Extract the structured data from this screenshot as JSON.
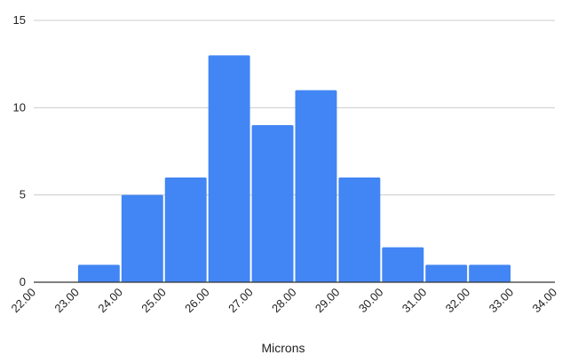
{
  "chart_data": {
    "type": "bar",
    "title": "",
    "xlabel": "Microns",
    "ylabel": "",
    "x_ticks": [
      "22.00",
      "23.00",
      "24.00",
      "25.00",
      "26.00",
      "27.00",
      "28.00",
      "29.00",
      "30.00",
      "31.00",
      "32.00",
      "33.00",
      "34.00"
    ],
    "x_tick_values": [
      22,
      23,
      24,
      25,
      26,
      27,
      28,
      29,
      30,
      31,
      32,
      33,
      34
    ],
    "xlim": [
      22,
      34
    ],
    "bins": [
      {
        "start": 23,
        "end": 24,
        "count": 1
      },
      {
        "start": 24,
        "end": 25,
        "count": 5
      },
      {
        "start": 25,
        "end": 26,
        "count": 6
      },
      {
        "start": 26,
        "end": 27,
        "count": 13
      },
      {
        "start": 27,
        "end": 28,
        "count": 9
      },
      {
        "start": 28,
        "end": 29,
        "count": 11
      },
      {
        "start": 29,
        "end": 30,
        "count": 6
      },
      {
        "start": 30,
        "end": 31,
        "count": 2
      },
      {
        "start": 31,
        "end": 32,
        "count": 1
      },
      {
        "start": 32,
        "end": 33,
        "count": 1
      }
    ],
    "y_ticks": [
      0,
      5,
      10,
      15
    ],
    "ylim": [
      0,
      15
    ],
    "grid": true,
    "bar_color": "#4285f4",
    "grid_color": "#cccccc",
    "axis_color": "#333333"
  }
}
